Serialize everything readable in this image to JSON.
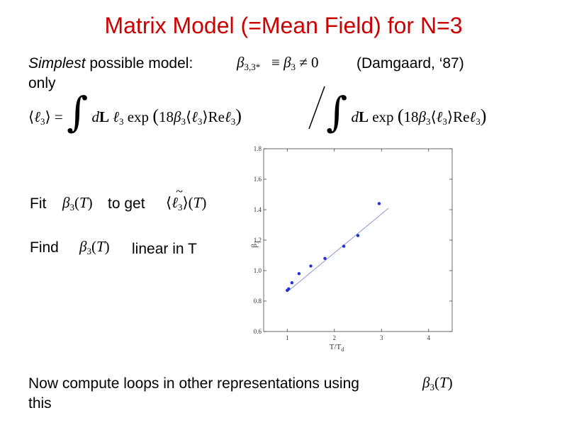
{
  "slide": {
    "title": "Matrix Model (=Mean Field) for N=3",
    "line1_italic": "Simplest",
    "line1_rest": " possible model:",
    "line1_wrap": "only",
    "citation": "(Damgaard, ‘87)",
    "fit_label": "Fit",
    "fit_mid": "to get",
    "find_label": "Find",
    "find_rest": "linear in T",
    "bottom_line1": "Now compute loops in other representations using",
    "bottom_line2": "this"
  },
  "math": {
    "beta": "β",
    "three": "3",
    "beta_sub_constraint": "3,3*",
    "equiv": "≡",
    "neq_zero": "≠ 0",
    "l": "ℓ",
    "langle": "⟨",
    "rangle": "⟩",
    "equals": "=",
    "integral": "∫",
    "dL_d": "d",
    "dL_L": "L",
    "exp": "exp",
    "eighteen": "18",
    "Re": "Re",
    "T": "T",
    "lparen": "(",
    "rparen": ")",
    "tilde": "~"
  },
  "chart_data": {
    "type": "scatter",
    "title": "",
    "xlabel": "T/T_d",
    "ylabel": "β_3",
    "xlim": [
      0.5,
      4.5
    ],
    "ylim": [
      0.6,
      1.8
    ],
    "xticks": [
      "1",
      "2",
      "3",
      "4"
    ],
    "yticks": [
      "0.6",
      "0.8",
      "1.0",
      "1.2",
      "1.4",
      "1.6",
      "1.8"
    ],
    "grid": false,
    "points": [
      {
        "x": 1.0,
        "y": 0.87
      },
      {
        "x": 1.03,
        "y": 0.88
      },
      {
        "x": 1.1,
        "y": 0.92
      },
      {
        "x": 1.25,
        "y": 0.98
      },
      {
        "x": 1.5,
        "y": 1.03
      },
      {
        "x": 1.8,
        "y": 1.08
      },
      {
        "x": 2.2,
        "y": 1.16
      },
      {
        "x": 2.5,
        "y": 1.23
      },
      {
        "x": 2.95,
        "y": 1.44
      }
    ],
    "fit_line": {
      "x": [
        1.0,
        3.15
      ],
      "y": [
        0.86,
        1.41
      ]
    }
  }
}
